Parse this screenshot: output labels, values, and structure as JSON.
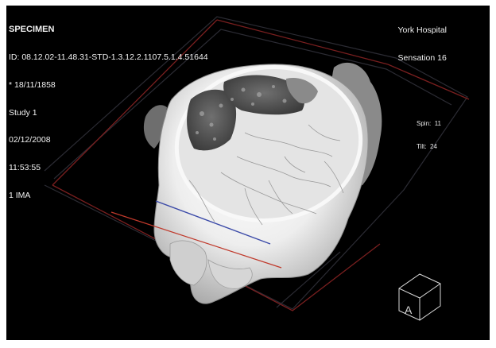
{
  "info_left": {
    "title": "SPECIMEN",
    "id_line": "ID: 08.12.02-11.48.31-STD-1.3.12.2.1107.5.1.4.51644",
    "birth_date": "* 18/11/1858",
    "study": "Study 1",
    "date": "02/12/2008",
    "time": "11:53:55",
    "image_label": "1 IMA"
  },
  "info_right": {
    "institution": "York Hospital",
    "scanner": "Sensation 16"
  },
  "orientation": {
    "spin_label": "Spin:",
    "spin_value": "11",
    "tilt_label": "Tilt:",
    "tilt_value": "24"
  },
  "orientation_cube": {
    "face_letter": "A"
  },
  "colors": {
    "background": "#000000",
    "overlay_text": "#f2f2f2",
    "plane_red": "#c0392b",
    "plane_blue": "#3b4aa8"
  }
}
